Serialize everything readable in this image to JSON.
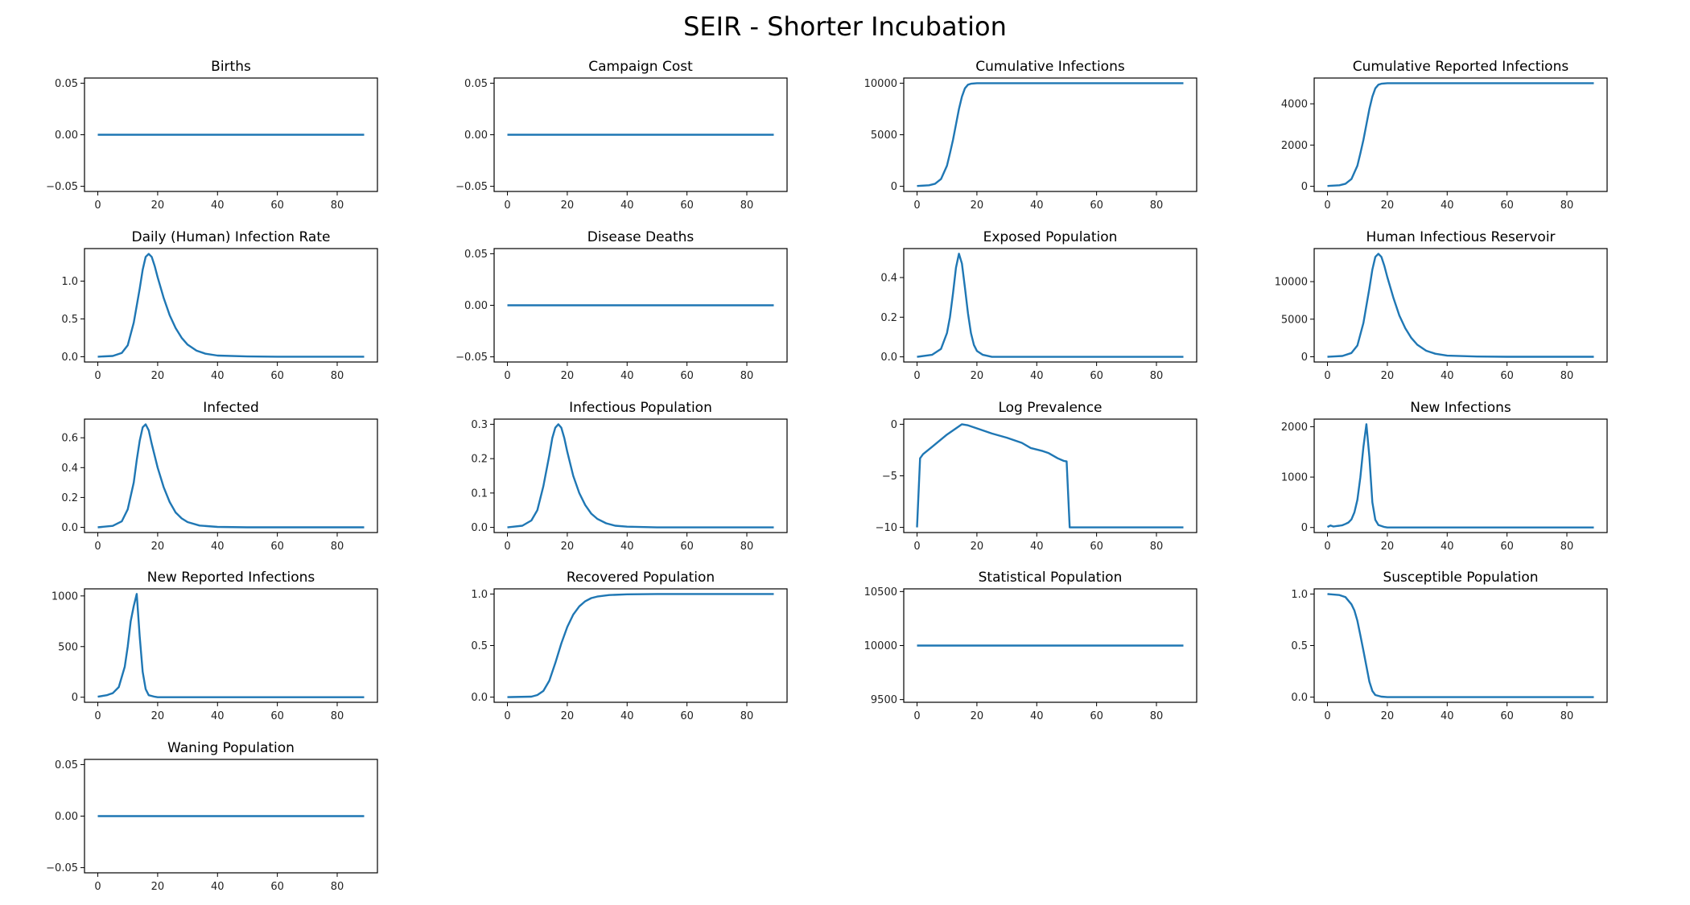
{
  "title": "SEIR - Shorter Incubation",
  "line_color": "#1f77b4",
  "chart_data": [
    {
      "type": "line",
      "title": "Births",
      "xlim": [
        -4.45,
        93.45
      ],
      "ylim": [
        -0.055,
        0.055
      ],
      "xticks": [
        0,
        20,
        40,
        60,
        80
      ],
      "yticks": [
        -0.05,
        0.0,
        0.05
      ],
      "ytick_labels": [
        "−0.05",
        "0.00",
        "0.05"
      ],
      "points": [
        [
          0,
          0
        ],
        [
          89,
          0
        ]
      ]
    },
    {
      "type": "line",
      "title": "Campaign Cost",
      "xlim": [
        -4.45,
        93.45
      ],
      "ylim": [
        -0.055,
        0.055
      ],
      "xticks": [
        0,
        20,
        40,
        60,
        80
      ],
      "yticks": [
        -0.05,
        0.0,
        0.05
      ],
      "ytick_labels": [
        "−0.05",
        "0.00",
        "0.05"
      ],
      "points": [
        [
          0,
          0
        ],
        [
          89,
          0
        ]
      ]
    },
    {
      "type": "line",
      "title": "Cumulative Infections",
      "xlim": [
        -4.45,
        93.45
      ],
      "ylim": [
        -500,
        10500
      ],
      "xticks": [
        0,
        20,
        40,
        60,
        80
      ],
      "yticks": [
        0,
        5000,
        10000
      ],
      "ytick_labels": [
        "0",
        "5000",
        "10000"
      ],
      "points": [
        [
          0,
          30
        ],
        [
          4,
          100
        ],
        [
          6,
          250
        ],
        [
          8,
          700
        ],
        [
          10,
          2000
        ],
        [
          11,
          3200
        ],
        [
          12,
          4500
        ],
        [
          13,
          6000
        ],
        [
          14,
          7500
        ],
        [
          15,
          8700
        ],
        [
          16,
          9500
        ],
        [
          17,
          9850
        ],
        [
          18,
          9950
        ],
        [
          20,
          10000
        ],
        [
          89,
          10000
        ]
      ]
    },
    {
      "type": "line",
      "title": "Cumulative Reported Infections",
      "xlim": [
        -4.45,
        93.45
      ],
      "ylim": [
        -250,
        5250
      ],
      "xticks": [
        0,
        20,
        40,
        60,
        80
      ],
      "yticks": [
        0,
        2000,
        4000
      ],
      "ytick_labels": [
        "0",
        "2000",
        "4000"
      ],
      "points": [
        [
          0,
          15
        ],
        [
          4,
          50
        ],
        [
          6,
          125
        ],
        [
          8,
          350
        ],
        [
          10,
          1000
        ],
        [
          11,
          1600
        ],
        [
          12,
          2250
        ],
        [
          13,
          3000
        ],
        [
          14,
          3750
        ],
        [
          15,
          4350
        ],
        [
          16,
          4750
        ],
        [
          17,
          4925
        ],
        [
          18,
          4975
        ],
        [
          20,
          5000
        ],
        [
          89,
          5000
        ]
      ]
    },
    {
      "type": "line",
      "title": "Daily (Human) Infection Rate",
      "xlim": [
        -4.45,
        93.45
      ],
      "ylim": [
        -0.07,
        1.43
      ],
      "xticks": [
        0,
        20,
        40,
        60,
        80
      ],
      "yticks": [
        0,
        0.5,
        1.0
      ],
      "ytick_labels": [
        "0.0",
        "0.5",
        "1.0"
      ],
      "points": [
        [
          0,
          0
        ],
        [
          5,
          0.01
        ],
        [
          8,
          0.05
        ],
        [
          10,
          0.15
        ],
        [
          12,
          0.45
        ],
        [
          14,
          0.9
        ],
        [
          15,
          1.15
        ],
        [
          16,
          1.32
        ],
        [
          17,
          1.36
        ],
        [
          18,
          1.32
        ],
        [
          19,
          1.2
        ],
        [
          20,
          1.05
        ],
        [
          22,
          0.78
        ],
        [
          24,
          0.55
        ],
        [
          26,
          0.38
        ],
        [
          28,
          0.25
        ],
        [
          30,
          0.16
        ],
        [
          33,
          0.08
        ],
        [
          36,
          0.04
        ],
        [
          40,
          0.015
        ],
        [
          50,
          0.003
        ],
        [
          60,
          0
        ],
        [
          89,
          0
        ]
      ]
    },
    {
      "type": "line",
      "title": "Disease Deaths",
      "xlim": [
        -4.45,
        93.45
      ],
      "ylim": [
        -0.055,
        0.055
      ],
      "xticks": [
        0,
        20,
        40,
        60,
        80
      ],
      "yticks": [
        -0.05,
        0.0,
        0.05
      ],
      "ytick_labels": [
        "−0.05",
        "0.00",
        "0.05"
      ],
      "points": [
        [
          0,
          0
        ],
        [
          89,
          0
        ]
      ]
    },
    {
      "type": "line",
      "title": "Exposed Population",
      "xlim": [
        -4.45,
        93.45
      ],
      "ylim": [
        -0.026,
        0.546
      ],
      "xticks": [
        0,
        20,
        40,
        60,
        80
      ],
      "yticks": [
        0,
        0.2,
        0.4
      ],
      "ytick_labels": [
        "0.0",
        "0.2",
        "0.4"
      ],
      "points": [
        [
          0,
          0
        ],
        [
          5,
          0.01
        ],
        [
          8,
          0.04
        ],
        [
          10,
          0.12
        ],
        [
          11,
          0.2
        ],
        [
          12,
          0.32
        ],
        [
          13,
          0.45
        ],
        [
          14,
          0.52
        ],
        [
          15,
          0.47
        ],
        [
          16,
          0.35
        ],
        [
          17,
          0.22
        ],
        [
          18,
          0.12
        ],
        [
          19,
          0.06
        ],
        [
          20,
          0.03
        ],
        [
          22,
          0.01
        ],
        [
          25,
          0
        ],
        [
          89,
          0
        ]
      ]
    },
    {
      "type": "line",
      "title": "Human Infectious Reservoir",
      "xlim": [
        -4.45,
        93.45
      ],
      "ylim": [
        -700,
        14400
      ],
      "xticks": [
        0,
        20,
        40,
        60,
        80
      ],
      "yticks": [
        0,
        5000,
        10000
      ],
      "ytick_labels": [
        "0",
        "5000",
        "10000"
      ],
      "points": [
        [
          0,
          0
        ],
        [
          5,
          100
        ],
        [
          8,
          500
        ],
        [
          10,
          1500
        ],
        [
          12,
          4500
        ],
        [
          14,
          9100
        ],
        [
          15,
          11600
        ],
        [
          16,
          13300
        ],
        [
          17,
          13700
        ],
        [
          18,
          13300
        ],
        [
          19,
          12100
        ],
        [
          20,
          10600
        ],
        [
          22,
          7900
        ],
        [
          24,
          5500
        ],
        [
          26,
          3800
        ],
        [
          28,
          2500
        ],
        [
          30,
          1600
        ],
        [
          33,
          800
        ],
        [
          36,
          400
        ],
        [
          40,
          150
        ],
        [
          50,
          30
        ],
        [
          60,
          0
        ],
        [
          89,
          0
        ]
      ]
    },
    {
      "type": "line",
      "title": "Infected",
      "xlim": [
        -4.45,
        93.45
      ],
      "ylim": [
        -0.035,
        0.725
      ],
      "xticks": [
        0,
        20,
        40,
        60,
        80
      ],
      "yticks": [
        0,
        0.2,
        0.4,
        0.6
      ],
      "ytick_labels": [
        "0.0",
        "0.2",
        "0.4",
        "0.6"
      ],
      "points": [
        [
          0,
          0
        ],
        [
          5,
          0.01
        ],
        [
          8,
          0.04
        ],
        [
          10,
          0.12
        ],
        [
          12,
          0.3
        ],
        [
          13,
          0.45
        ],
        [
          14,
          0.58
        ],
        [
          15,
          0.67
        ],
        [
          16,
          0.69
        ],
        [
          17,
          0.65
        ],
        [
          18,
          0.56
        ],
        [
          20,
          0.4
        ],
        [
          22,
          0.27
        ],
        [
          24,
          0.17
        ],
        [
          26,
          0.1
        ],
        [
          28,
          0.06
        ],
        [
          30,
          0.035
        ],
        [
          34,
          0.012
        ],
        [
          40,
          0.003
        ],
        [
          50,
          0
        ],
        [
          89,
          0
        ]
      ]
    },
    {
      "type": "line",
      "title": "Infectious Population",
      "xlim": [
        -4.45,
        93.45
      ],
      "ylim": [
        -0.015,
        0.315
      ],
      "xticks": [
        0,
        20,
        40,
        60,
        80
      ],
      "yticks": [
        0,
        0.1,
        0.2,
        0.3
      ],
      "ytick_labels": [
        "0.0",
        "0.1",
        "0.2",
        "0.3"
      ],
      "points": [
        [
          0,
          0
        ],
        [
          5,
          0.005
        ],
        [
          8,
          0.02
        ],
        [
          10,
          0.05
        ],
        [
          12,
          0.12
        ],
        [
          14,
          0.21
        ],
        [
          15,
          0.26
        ],
        [
          16,
          0.29
        ],
        [
          17,
          0.3
        ],
        [
          18,
          0.29
        ],
        [
          19,
          0.26
        ],
        [
          20,
          0.22
        ],
        [
          22,
          0.15
        ],
        [
          24,
          0.1
        ],
        [
          26,
          0.065
        ],
        [
          28,
          0.04
        ],
        [
          30,
          0.025
        ],
        [
          33,
          0.012
        ],
        [
          36,
          0.005
        ],
        [
          40,
          0.002
        ],
        [
          50,
          0
        ],
        [
          89,
          0
        ]
      ]
    },
    {
      "type": "line",
      "title": "Log Prevalence",
      "xlim": [
        -4.45,
        93.45
      ],
      "ylim": [
        -10.5,
        0.5
      ],
      "xticks": [
        0,
        20,
        40,
        60,
        80
      ],
      "yticks": [
        -10,
        -5,
        0
      ],
      "ytick_labels": [
        "−10",
        "−5",
        "0"
      ],
      "points": [
        [
          0,
          -10
        ],
        [
          1,
          -3.3
        ],
        [
          2,
          -2.9
        ],
        [
          5,
          -2.2
        ],
        [
          10,
          -1.0
        ],
        [
          15,
          0
        ],
        [
          17,
          -0.1
        ],
        [
          20,
          -0.4
        ],
        [
          25,
          -0.9
        ],
        [
          30,
          -1.3
        ],
        [
          35,
          -1.8
        ],
        [
          38,
          -2.3
        ],
        [
          42,
          -2.6
        ],
        [
          44,
          -2.8
        ],
        [
          47,
          -3.3
        ],
        [
          49,
          -3.55
        ],
        [
          50,
          -3.6
        ],
        [
          51,
          -10
        ],
        [
          89,
          -10
        ]
      ]
    },
    {
      "type": "line",
      "title": "New Infections",
      "xlim": [
        -4.45,
        93.45
      ],
      "ylim": [
        -100,
        2150
      ],
      "xticks": [
        0,
        20,
        40,
        60,
        80
      ],
      "yticks": [
        0,
        1000,
        2000
      ],
      "ytick_labels": [
        "0",
        "1000",
        "2000"
      ],
      "points": [
        [
          0,
          10
        ],
        [
          1,
          40
        ],
        [
          2,
          20
        ],
        [
          3,
          30
        ],
        [
          4,
          35
        ],
        [
          5,
          45
        ],
        [
          6,
          70
        ],
        [
          7,
          100
        ],
        [
          8,
          160
        ],
        [
          9,
          300
        ],
        [
          10,
          550
        ],
        [
          11,
          1000
        ],
        [
          12,
          1600
        ],
        [
          13,
          2050
        ],
        [
          14,
          1400
        ],
        [
          15,
          500
        ],
        [
          16,
          150
        ],
        [
          17,
          50
        ],
        [
          19,
          10
        ],
        [
          20,
          0
        ],
        [
          89,
          0
        ]
      ]
    },
    {
      "type": "line",
      "title": "New Reported Infections",
      "xlim": [
        -4.45,
        93.45
      ],
      "ylim": [
        -50,
        1070
      ],
      "xticks": [
        0,
        20,
        40,
        60,
        80
      ],
      "yticks": [
        0,
        500,
        1000
      ],
      "ytick_labels": [
        "0",
        "500",
        "1000"
      ],
      "points": [
        [
          0,
          5
        ],
        [
          2,
          15
        ],
        [
          3,
          20
        ],
        [
          4,
          30
        ],
        [
          5,
          40
        ],
        [
          7,
          100
        ],
        [
          9,
          300
        ],
        [
          10,
          500
        ],
        [
          11,
          750
        ],
        [
          12,
          900
        ],
        [
          13,
          1020
        ],
        [
          14,
          600
        ],
        [
          15,
          250
        ],
        [
          16,
          80
        ],
        [
          17,
          20
        ],
        [
          19,
          5
        ],
        [
          20,
          0
        ],
        [
          89,
          0
        ]
      ]
    },
    {
      "type": "line",
      "title": "Recovered Population",
      "xlim": [
        -4.45,
        93.45
      ],
      "ylim": [
        -0.05,
        1.05
      ],
      "xticks": [
        0,
        20,
        40,
        60,
        80
      ],
      "yticks": [
        0,
        0.5,
        1.0
      ],
      "ytick_labels": [
        "0.0",
        "0.5",
        "1.0"
      ],
      "points": [
        [
          0,
          0
        ],
        [
          8,
          0.005
        ],
        [
          10,
          0.02
        ],
        [
          12,
          0.06
        ],
        [
          14,
          0.16
        ],
        [
          16,
          0.33
        ],
        [
          18,
          0.52
        ],
        [
          20,
          0.68
        ],
        [
          22,
          0.8
        ],
        [
          24,
          0.88
        ],
        [
          26,
          0.93
        ],
        [
          28,
          0.96
        ],
        [
          30,
          0.975
        ],
        [
          34,
          0.99
        ],
        [
          40,
          0.997
        ],
        [
          50,
          1
        ],
        [
          89,
          1
        ]
      ]
    },
    {
      "type": "line",
      "title": "Statistical Population",
      "xlim": [
        -4.45,
        93.45
      ],
      "ylim": [
        9475,
        10525
      ],
      "xticks": [
        0,
        20,
        40,
        60,
        80
      ],
      "yticks": [
        9500,
        10000,
        10500
      ],
      "ytick_labels": [
        "9500",
        "10000",
        "10500"
      ],
      "points": [
        [
          0,
          10000
        ],
        [
          89,
          10000
        ]
      ]
    },
    {
      "type": "line",
      "title": "Susceptible Population",
      "xlim": [
        -4.45,
        93.45
      ],
      "ylim": [
        -0.05,
        1.05
      ],
      "xticks": [
        0,
        20,
        40,
        60,
        80
      ],
      "yticks": [
        0,
        0.5,
        1.0
      ],
      "ytick_labels": [
        "0.0",
        "0.5",
        "1.0"
      ],
      "points": [
        [
          0,
          1
        ],
        [
          4,
          0.99
        ],
        [
          6,
          0.97
        ],
        [
          8,
          0.9
        ],
        [
          9,
          0.84
        ],
        [
          10,
          0.74
        ],
        [
          11,
          0.6
        ],
        [
          12,
          0.45
        ],
        [
          13,
          0.3
        ],
        [
          14,
          0.15
        ],
        [
          15,
          0.06
        ],
        [
          16,
          0.02
        ],
        [
          18,
          0.005
        ],
        [
          20,
          0
        ],
        [
          89,
          0
        ]
      ]
    },
    {
      "type": "line",
      "title": "Waning Population",
      "xlim": [
        -4.45,
        93.45
      ],
      "ylim": [
        -0.055,
        0.055
      ],
      "xticks": [
        0,
        20,
        40,
        60,
        80
      ],
      "yticks": [
        -0.05,
        0.0,
        0.05
      ],
      "ytick_labels": [
        "−0.05",
        "0.00",
        "0.05"
      ],
      "points": [
        [
          0,
          0
        ],
        [
          89,
          0
        ]
      ]
    }
  ]
}
